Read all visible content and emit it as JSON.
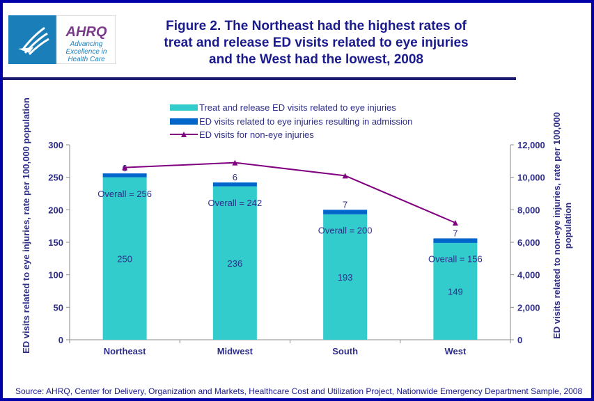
{
  "header": {
    "title": "Figure 2. The Northeast had the highest rates of treat and release ED visits related to eye injuries and the West had the lowest, 2008",
    "title_lines": [
      "Figure 2. The Northeast had the highest rates of",
      "treat and release ED visits related to eye injuries",
      "and the West had the lowest, 2008"
    ],
    "logo_text": [
      "AHRQ",
      "Advancing",
      "Excellence in",
      "Health Care"
    ],
    "seal_text": "DEPARTMENT OF HEALTH & HUMAN SERVICES USA"
  },
  "source": "Source: AHRQ, Center for Delivery, Organization and Markets, Healthcare Cost and Utilization Project, Nationwide Emergency Department Sample, 2008",
  "chart_data": {
    "type": "bar",
    "stacked": true,
    "categories": [
      "Northeast",
      "Midwest",
      "South",
      "West"
    ],
    "series": [
      {
        "name": "Treat and release ED visits related to eye injuries",
        "values": [
          250,
          236,
          193,
          149
        ],
        "color": "#33cccc",
        "axis": "left",
        "type": "bar"
      },
      {
        "name": "ED visits related to eye injuries resulting in admission",
        "values": [
          6,
          6,
          7,
          7
        ],
        "color": "#0066cc",
        "axis": "left",
        "type": "bar"
      },
      {
        "name": "ED visits for non-eye injuries",
        "values": [
          10600,
          10900,
          10100,
          7200
        ],
        "color": "#800080",
        "axis": "right",
        "type": "line",
        "marker": "triangle"
      }
    ],
    "annotations": [
      "Overall = 256",
      "Overall = 242",
      "Overall = 200",
      "Overall = 156"
    ],
    "ylabel": "ED visits related to eye injuries, rate per 100,000  population",
    "y2label": [
      "ED visits related to non-eye injuries, rate per 100,000",
      "population"
    ],
    "ylim": [
      0,
      300
    ],
    "y2lim": [
      0,
      12000
    ],
    "yticks": [
      "0",
      "50",
      "100",
      "150",
      "200",
      "250",
      "300"
    ],
    "y2ticks": [
      "0",
      "2,000",
      "4,000",
      "6,000",
      "8,000",
      "10,000",
      "12,000"
    ],
    "grid": false,
    "legend_position": "top"
  }
}
